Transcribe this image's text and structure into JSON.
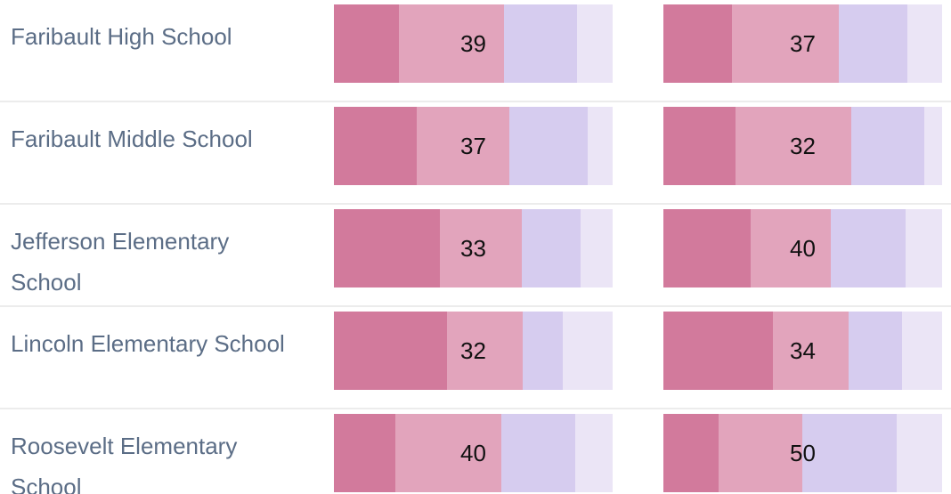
{
  "colors": [
    "#d27a9c",
    "#e2a4bc",
    "#d6ccef",
    "#ebe5f6"
  ],
  "rows": [
    {
      "name": "Faribault High School",
      "bars": [
        [
          24,
          39,
          27,
          13
        ],
        [
          24,
          37,
          24,
          12
        ]
      ]
    },
    {
      "name": "Faribault Middle School",
      "bars": [
        [
          33,
          37,
          31,
          10
        ],
        [
          20,
          32,
          20,
          5
        ]
      ]
    },
    {
      "name": "Jefferson Elementary School",
      "bars": [
        [
          43,
          33,
          24,
          13
        ],
        [
          43,
          40,
          37,
          18
        ]
      ]
    },
    {
      "name": "Lincoln Elementary School",
      "bars": [
        [
          48,
          32,
          17,
          21
        ],
        [
          49,
          34,
          24,
          18
        ]
      ]
    },
    {
      "name": "Roosevelt Elementary School",
      "bars": [
        [
          23,
          40,
          28,
          14
        ],
        [
          33,
          50,
          57,
          27
        ]
      ]
    }
  ]
}
